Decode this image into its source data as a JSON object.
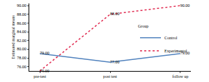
{
  "chart_data": {
    "type": "line",
    "y_label": "Estimated marginal means",
    "legend_title": "Group",
    "categories": [
      "pre-test",
      "post test",
      "follow up"
    ],
    "series": [
      {
        "name": "Control",
        "color": "#4f81bd",
        "line_style": "solid",
        "values": [
          79,
          77,
          79
        ],
        "value_labels": [
          "79.00",
          "77.00",
          "79.00"
        ]
      },
      {
        "name": "Experimental",
        "color": "#e0294f",
        "line_style": "dot",
        "values": [
          75,
          88,
          90
        ],
        "value_labels": [
          "75.00",
          "88.00",
          "90.00"
        ]
      }
    ],
    "ylim": [
      75,
      90.5
    ],
    "yticks": [
      {
        "value": 76,
        "label": "76.00"
      },
      {
        "value": 78,
        "label": "78.00"
      },
      {
        "value": 80,
        "label": "80.00"
      },
      {
        "value": 82,
        "label": "82.00"
      },
      {
        "value": 84,
        "label": "84.00"
      },
      {
        "value": 86,
        "label": "86.00"
      },
      {
        "value": 88,
        "label": "88.00"
      },
      {
        "value": 90,
        "label": "90.00"
      }
    ],
    "grid": false,
    "legend": "right",
    "data_labels": true
  }
}
